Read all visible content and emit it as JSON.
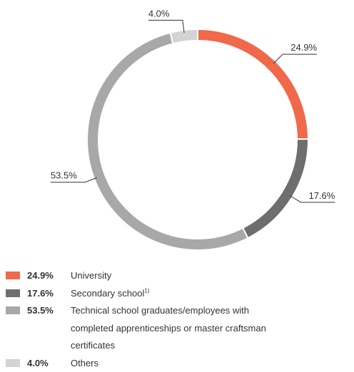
{
  "chart_data": {
    "type": "donut",
    "categories": [
      "University",
      "Secondary school",
      "Technical school graduates/employees with completed apprenticeships or master craftsman certificates",
      "Others"
    ],
    "superscripts": {
      "1": "1)"
    },
    "values": [
      24.9,
      17.6,
      53.5,
      4.0
    ],
    "value_labels": [
      "24.9%",
      "17.6%",
      "53.5%",
      "4.0%"
    ],
    "colors": [
      "#f0694a",
      "#6e6e6c",
      "#a8a8a8",
      "#d3d3d3"
    ],
    "legend": "bottom-left"
  }
}
